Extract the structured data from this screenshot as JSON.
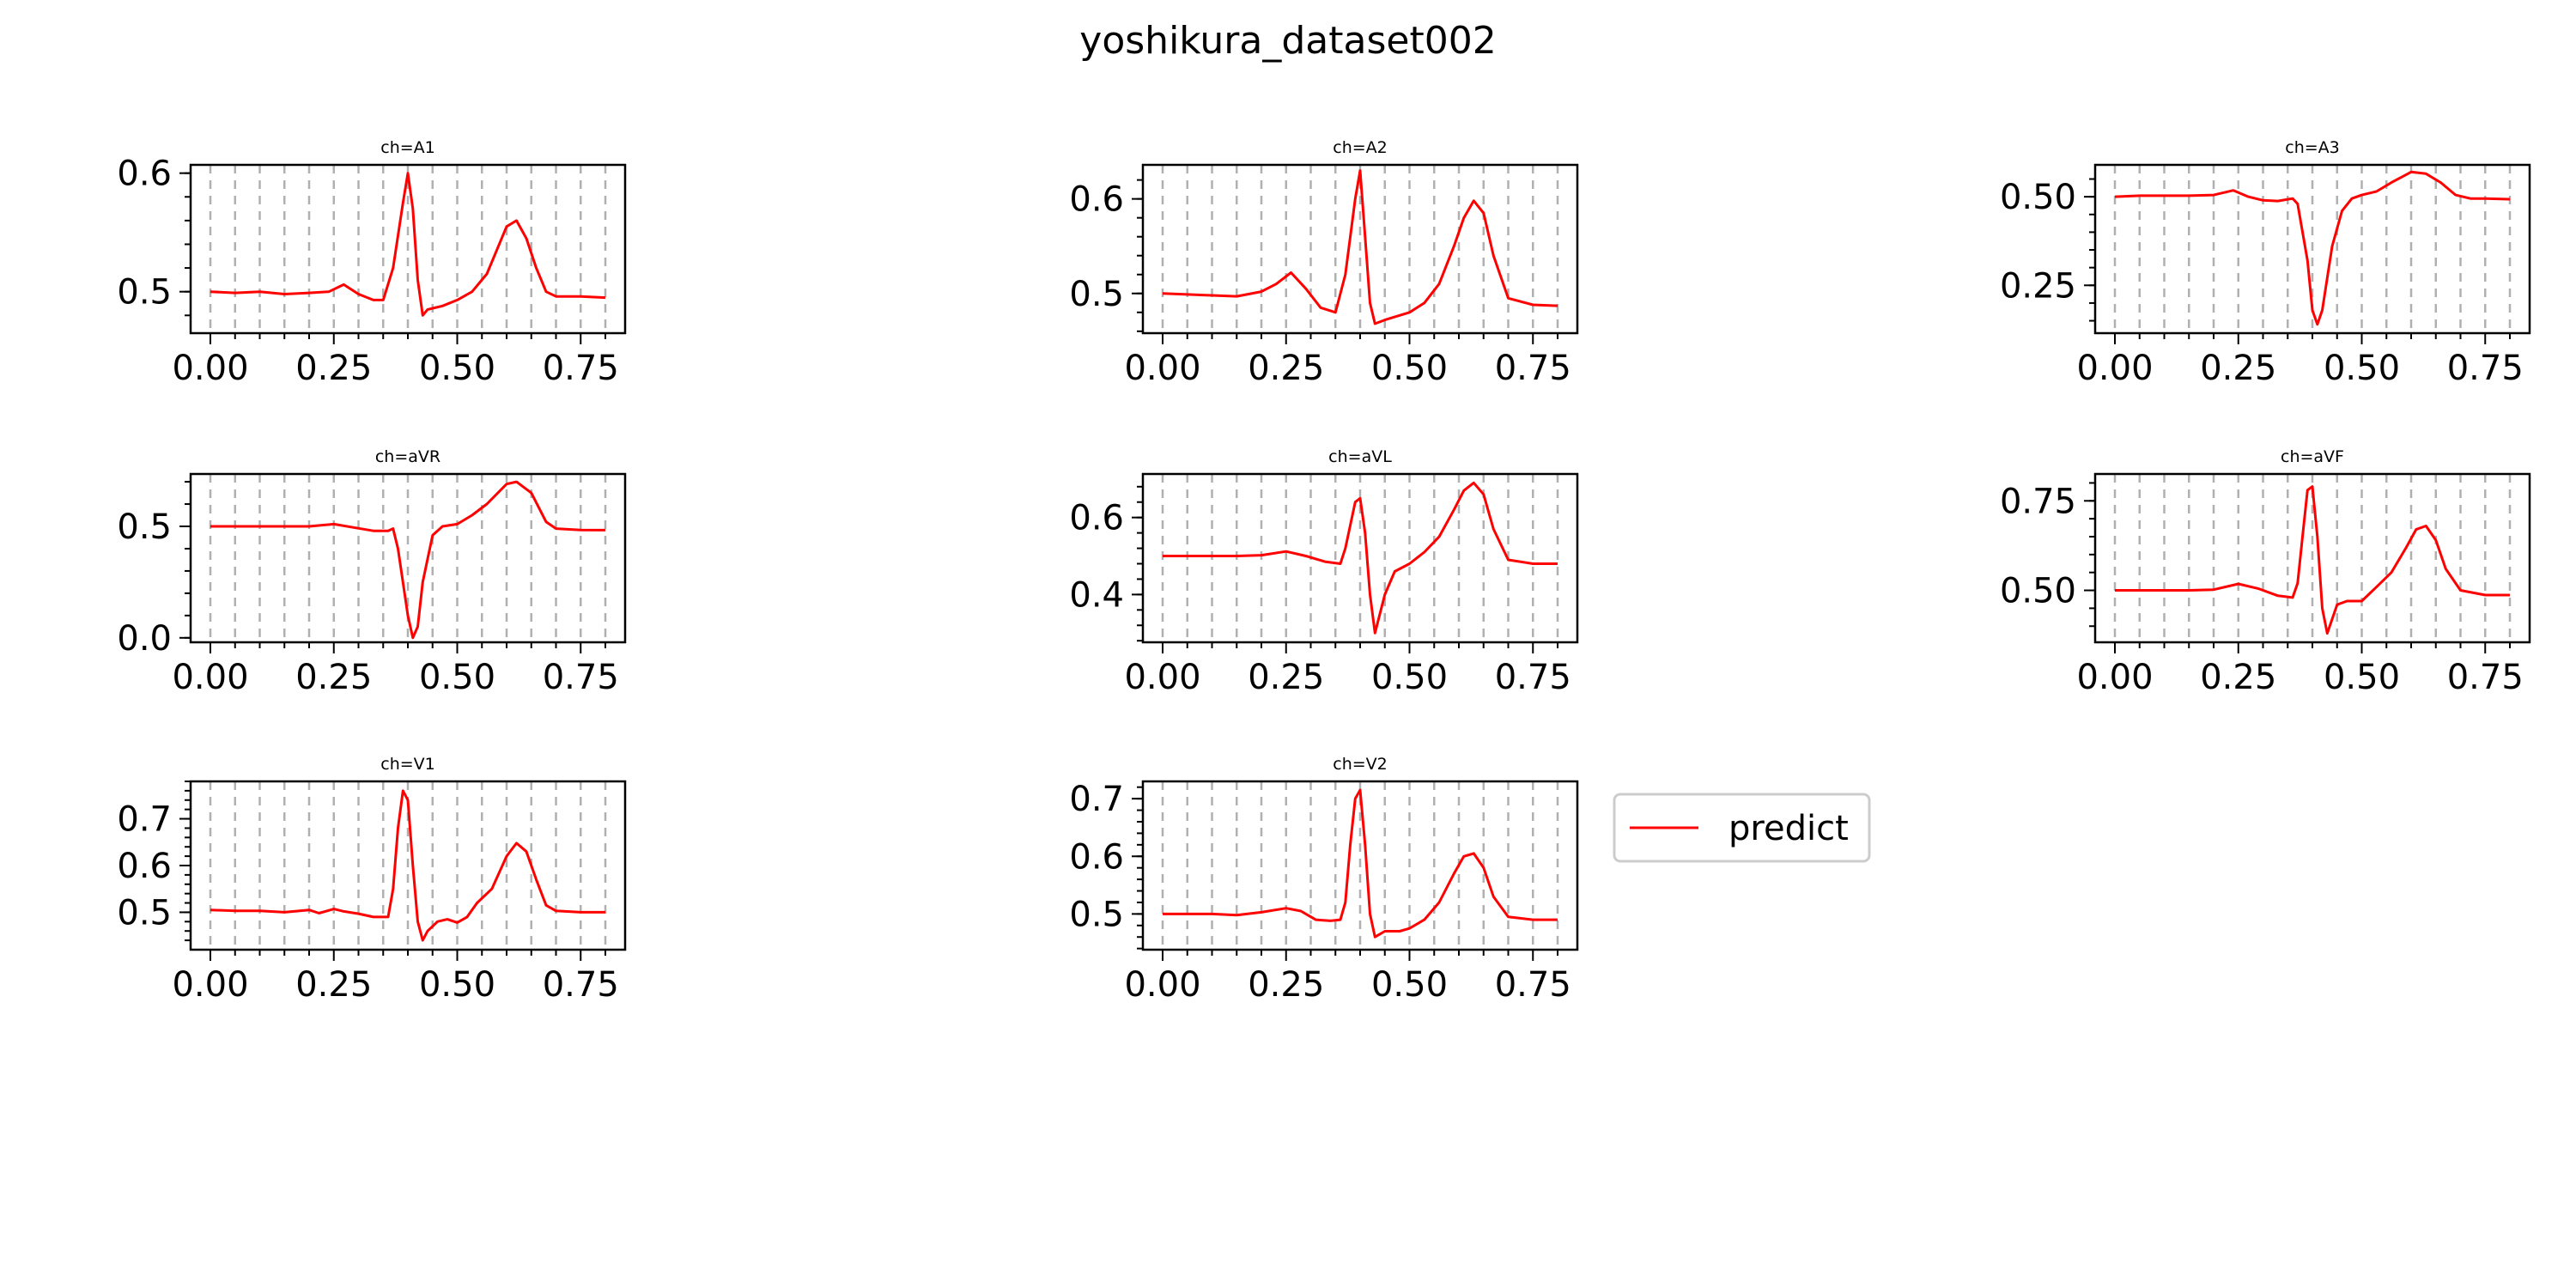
{
  "figure": {
    "title": "yoshikura_dataset002",
    "legend": {
      "label": "predict",
      "placement": "right of ch=V2 panel"
    }
  },
  "colors": {
    "series": "#ff0000",
    "grid": "#b0b0b0",
    "axes": "#000000",
    "background": "#ffffff"
  },
  "chart_data": [
    {
      "type": "line",
      "title": "ch=A1",
      "xlim": [
        -0.04,
        0.84
      ],
      "ylim": [
        0.465,
        0.607
      ],
      "xticks": [
        0.0,
        0.25,
        0.5,
        0.75
      ],
      "xtick_labels": [
        "0.00",
        "0.25",
        "0.50",
        "0.75"
      ],
      "yticks": [
        0.5,
        0.6
      ],
      "ytick_labels": [
        "0.5",
        "0.6"
      ],
      "grid_x": [
        0.0,
        0.05,
        0.1,
        0.15,
        0.2,
        0.25,
        0.3,
        0.35,
        0.4,
        0.45,
        0.5,
        0.55,
        0.6,
        0.65,
        0.7,
        0.75,
        0.8
      ],
      "series": [
        {
          "name": "predict",
          "color": "#ff0000",
          "x": [
            0.0,
            0.05,
            0.1,
            0.15,
            0.2,
            0.24,
            0.27,
            0.3,
            0.33,
            0.35,
            0.37,
            0.39,
            0.4,
            0.41,
            0.42,
            0.43,
            0.44,
            0.47,
            0.5,
            0.53,
            0.56,
            0.58,
            0.6,
            0.62,
            0.64,
            0.66,
            0.68,
            0.7,
            0.75,
            0.8
          ],
          "y": [
            0.5,
            0.499,
            0.5,
            0.498,
            0.499,
            0.5,
            0.506,
            0.498,
            0.493,
            0.493,
            0.52,
            0.575,
            0.6,
            0.57,
            0.51,
            0.48,
            0.485,
            0.488,
            0.493,
            0.5,
            0.515,
            0.535,
            0.555,
            0.56,
            0.545,
            0.52,
            0.5,
            0.496,
            0.496,
            0.495
          ]
        }
      ]
    },
    {
      "type": "line",
      "title": "ch=A2",
      "xlim": [
        -0.04,
        0.84
      ],
      "ylim": [
        0.458,
        0.636
      ],
      "xticks": [
        0.0,
        0.25,
        0.5,
        0.75
      ],
      "xtick_labels": [
        "0.00",
        "0.25",
        "0.50",
        "0.75"
      ],
      "yticks": [
        0.5,
        0.6
      ],
      "ytick_labels": [
        "0.5",
        "0.6"
      ],
      "grid_x": [
        0.0,
        0.05,
        0.1,
        0.15,
        0.2,
        0.25,
        0.3,
        0.35,
        0.4,
        0.45,
        0.5,
        0.55,
        0.6,
        0.65,
        0.7,
        0.75,
        0.8
      ],
      "series": [
        {
          "name": "predict",
          "color": "#ff0000",
          "x": [
            0.0,
            0.05,
            0.1,
            0.15,
            0.2,
            0.23,
            0.26,
            0.29,
            0.32,
            0.35,
            0.37,
            0.39,
            0.4,
            0.41,
            0.42,
            0.43,
            0.45,
            0.5,
            0.53,
            0.56,
            0.59,
            0.61,
            0.63,
            0.65,
            0.67,
            0.7,
            0.75,
            0.8
          ],
          "y": [
            0.5,
            0.499,
            0.498,
            0.497,
            0.502,
            0.51,
            0.522,
            0.505,
            0.485,
            0.48,
            0.52,
            0.6,
            0.63,
            0.56,
            0.49,
            0.468,
            0.472,
            0.48,
            0.49,
            0.51,
            0.55,
            0.58,
            0.598,
            0.585,
            0.54,
            0.495,
            0.488,
            0.487
          ]
        }
      ]
    },
    {
      "type": "line",
      "title": "ch=A3",
      "xlim": [
        -0.04,
        0.84
      ],
      "ylim": [
        0.115,
        0.59
      ],
      "xticks": [
        0.0,
        0.25,
        0.5,
        0.75
      ],
      "xtick_labels": [
        "0.00",
        "0.25",
        "0.50",
        "0.75"
      ],
      "yticks": [
        0.25,
        0.5
      ],
      "ytick_labels": [
        "0.25",
        "0.50"
      ],
      "grid_x": [
        0.0,
        0.05,
        0.1,
        0.15,
        0.2,
        0.25,
        0.3,
        0.35,
        0.4,
        0.45,
        0.5,
        0.55,
        0.6,
        0.65,
        0.7,
        0.75,
        0.8
      ],
      "series": [
        {
          "name": "predict",
          "color": "#ff0000",
          "x": [
            0.0,
            0.05,
            0.1,
            0.15,
            0.2,
            0.24,
            0.27,
            0.3,
            0.33,
            0.36,
            0.37,
            0.39,
            0.4,
            0.41,
            0.42,
            0.44,
            0.46,
            0.48,
            0.5,
            0.53,
            0.56,
            0.6,
            0.63,
            0.66,
            0.69,
            0.72,
            0.75,
            0.8
          ],
          "y": [
            0.5,
            0.503,
            0.503,
            0.503,
            0.505,
            0.518,
            0.5,
            0.49,
            0.488,
            0.495,
            0.48,
            0.32,
            0.18,
            0.14,
            0.18,
            0.36,
            0.46,
            0.495,
            0.505,
            0.515,
            0.54,
            0.57,
            0.565,
            0.54,
            0.505,
            0.495,
            0.495,
            0.493
          ]
        }
      ]
    },
    {
      "type": "line",
      "title": "ch=aVR",
      "xlim": [
        -0.04,
        0.84
      ],
      "ylim": [
        -0.02,
        0.735
      ],
      "xticks": [
        0.0,
        0.25,
        0.5,
        0.75
      ],
      "xtick_labels": [
        "0.00",
        "0.25",
        "0.50",
        "0.75"
      ],
      "yticks": [
        0.0,
        0.5
      ],
      "ytick_labels": [
        "0.0",
        "0.5"
      ],
      "grid_x": [
        0.0,
        0.05,
        0.1,
        0.15,
        0.2,
        0.25,
        0.3,
        0.35,
        0.4,
        0.45,
        0.5,
        0.55,
        0.6,
        0.65,
        0.7,
        0.75,
        0.8
      ],
      "series": [
        {
          "name": "predict",
          "color": "#ff0000",
          "x": [
            0.0,
            0.05,
            0.1,
            0.15,
            0.2,
            0.25,
            0.29,
            0.33,
            0.36,
            0.37,
            0.38,
            0.4,
            0.41,
            0.42,
            0.43,
            0.45,
            0.47,
            0.5,
            0.53,
            0.56,
            0.6,
            0.62,
            0.65,
            0.68,
            0.7,
            0.75,
            0.8
          ],
          "y": [
            0.5,
            0.5,
            0.5,
            0.5,
            0.5,
            0.51,
            0.495,
            0.48,
            0.48,
            0.49,
            0.4,
            0.1,
            0.0,
            0.05,
            0.25,
            0.46,
            0.5,
            0.51,
            0.55,
            0.6,
            0.69,
            0.7,
            0.65,
            0.52,
            0.49,
            0.484,
            0.483
          ]
        }
      ]
    },
    {
      "type": "line",
      "title": "ch=aVL",
      "xlim": [
        -0.04,
        0.84
      ],
      "ylim": [
        0.276,
        0.713
      ],
      "xticks": [
        0.0,
        0.25,
        0.5,
        0.75
      ],
      "xtick_labels": [
        "0.00",
        "0.25",
        "0.50",
        "0.75"
      ],
      "yticks": [
        0.4,
        0.6
      ],
      "ytick_labels": [
        "0.4",
        "0.6"
      ],
      "grid_x": [
        0.0,
        0.05,
        0.1,
        0.15,
        0.2,
        0.25,
        0.3,
        0.35,
        0.4,
        0.45,
        0.5,
        0.55,
        0.6,
        0.65,
        0.7,
        0.75,
        0.8
      ],
      "series": [
        {
          "name": "predict",
          "color": "#ff0000",
          "x": [
            0.0,
            0.05,
            0.1,
            0.15,
            0.2,
            0.25,
            0.29,
            0.33,
            0.36,
            0.37,
            0.39,
            0.4,
            0.41,
            0.42,
            0.43,
            0.45,
            0.47,
            0.5,
            0.53,
            0.56,
            0.59,
            0.61,
            0.63,
            0.65,
            0.67,
            0.7,
            0.75,
            0.8
          ],
          "y": [
            0.5,
            0.5,
            0.5,
            0.5,
            0.502,
            0.512,
            0.5,
            0.485,
            0.48,
            0.52,
            0.64,
            0.65,
            0.56,
            0.4,
            0.3,
            0.4,
            0.46,
            0.48,
            0.51,
            0.55,
            0.62,
            0.67,
            0.69,
            0.66,
            0.57,
            0.49,
            0.48,
            0.48
          ]
        }
      ]
    },
    {
      "type": "line",
      "title": "ch=aVF",
      "xlim": [
        -0.04,
        0.84
      ],
      "ylim": [
        0.355,
        0.825
      ],
      "xticks": [
        0.0,
        0.25,
        0.5,
        0.75
      ],
      "xtick_labels": [
        "0.00",
        "0.25",
        "0.50",
        "0.75"
      ],
      "yticks": [
        0.5,
        0.75
      ],
      "ytick_labels": [
        "0.50",
        "0.75"
      ],
      "grid_x": [
        0.0,
        0.05,
        0.1,
        0.15,
        0.2,
        0.25,
        0.3,
        0.35,
        0.4,
        0.45,
        0.5,
        0.55,
        0.6,
        0.65,
        0.7,
        0.75,
        0.8
      ],
      "series": [
        {
          "name": "predict",
          "color": "#ff0000",
          "x": [
            0.0,
            0.05,
            0.1,
            0.15,
            0.2,
            0.25,
            0.29,
            0.33,
            0.36,
            0.37,
            0.38,
            0.39,
            0.4,
            0.41,
            0.42,
            0.43,
            0.45,
            0.47,
            0.5,
            0.53,
            0.56,
            0.59,
            0.61,
            0.63,
            0.65,
            0.67,
            0.7,
            0.75,
            0.8
          ],
          "y": [
            0.5,
            0.5,
            0.5,
            0.5,
            0.502,
            0.518,
            0.505,
            0.485,
            0.48,
            0.52,
            0.65,
            0.78,
            0.79,
            0.65,
            0.45,
            0.38,
            0.46,
            0.47,
            0.47,
            0.51,
            0.55,
            0.62,
            0.67,
            0.68,
            0.64,
            0.56,
            0.5,
            0.487,
            0.487
          ]
        }
      ]
    },
    {
      "type": "line",
      "title": "ch=V1",
      "xlim": [
        -0.04,
        0.84
      ],
      "ylim": [
        0.42,
        0.78
      ],
      "xticks": [
        0.0,
        0.25,
        0.5,
        0.75
      ],
      "xtick_labels": [
        "0.00",
        "0.25",
        "0.50",
        "0.75"
      ],
      "yticks": [
        0.5,
        0.6,
        0.7
      ],
      "ytick_labels": [
        "0.5",
        "0.6",
        "0.7"
      ],
      "grid_x": [
        0.0,
        0.05,
        0.1,
        0.15,
        0.2,
        0.25,
        0.3,
        0.35,
        0.4,
        0.45,
        0.5,
        0.55,
        0.6,
        0.65,
        0.7,
        0.75,
        0.8
      ],
      "series": [
        {
          "name": "predict",
          "color": "#ff0000",
          "x": [
            0.0,
            0.05,
            0.1,
            0.15,
            0.2,
            0.22,
            0.25,
            0.27,
            0.3,
            0.33,
            0.36,
            0.37,
            0.38,
            0.39,
            0.4,
            0.41,
            0.42,
            0.43,
            0.44,
            0.46,
            0.48,
            0.5,
            0.52,
            0.54,
            0.55,
            0.57,
            0.6,
            0.62,
            0.64,
            0.66,
            0.68,
            0.7,
            0.75,
            0.8
          ],
          "y": [
            0.505,
            0.503,
            0.503,
            0.5,
            0.505,
            0.498,
            0.507,
            0.502,
            0.497,
            0.49,
            0.49,
            0.55,
            0.68,
            0.76,
            0.74,
            0.6,
            0.48,
            0.44,
            0.46,
            0.48,
            0.485,
            0.478,
            0.49,
            0.52,
            0.53,
            0.55,
            0.62,
            0.648,
            0.63,
            0.57,
            0.515,
            0.503,
            0.5,
            0.5
          ]
        }
      ]
    },
    {
      "type": "line",
      "title": "ch=V2",
      "xlim": [
        -0.04,
        0.84
      ],
      "ylim": [
        0.438,
        0.73
      ],
      "xticks": [
        0.0,
        0.25,
        0.5,
        0.75
      ],
      "xtick_labels": [
        "0.00",
        "0.25",
        "0.50",
        "0.75"
      ],
      "yticks": [
        0.5,
        0.6,
        0.7
      ],
      "ytick_labels": [
        "0.5",
        "0.6",
        "0.7"
      ],
      "grid_x": [
        0.0,
        0.05,
        0.1,
        0.15,
        0.2,
        0.25,
        0.3,
        0.35,
        0.4,
        0.45,
        0.5,
        0.55,
        0.6,
        0.65,
        0.7,
        0.75,
        0.8
      ],
      "series": [
        {
          "name": "predict",
          "color": "#ff0000",
          "x": [
            0.0,
            0.05,
            0.1,
            0.15,
            0.2,
            0.25,
            0.28,
            0.31,
            0.34,
            0.36,
            0.37,
            0.38,
            0.39,
            0.4,
            0.41,
            0.42,
            0.43,
            0.45,
            0.48,
            0.5,
            0.53,
            0.56,
            0.59,
            0.61,
            0.63,
            0.65,
            0.67,
            0.7,
            0.75,
            0.8
          ],
          "y": [
            0.5,
            0.5,
            0.5,
            0.498,
            0.503,
            0.51,
            0.505,
            0.49,
            0.488,
            0.49,
            0.52,
            0.62,
            0.7,
            0.715,
            0.62,
            0.5,
            0.46,
            0.47,
            0.47,
            0.475,
            0.49,
            0.52,
            0.57,
            0.6,
            0.605,
            0.58,
            0.53,
            0.495,
            0.49,
            0.49
          ]
        }
      ]
    }
  ]
}
